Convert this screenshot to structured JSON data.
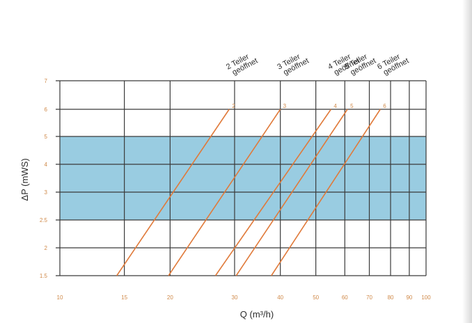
{
  "chart_data": {
    "type": "line",
    "xscale": "log",
    "xlim": [
      10,
      100
    ],
    "ylim": [
      1.5,
      7
    ],
    "xlabel": "Q (m³/h)",
    "ylabel": "ΔP (mWS)",
    "xticks": [
      {
        "value": 10,
        "label": "10"
      },
      {
        "value": 15,
        "label": "15"
      },
      {
        "value": 20,
        "label": "20"
      },
      {
        "value": 30,
        "label": "30"
      },
      {
        "value": 40,
        "label": "40"
      },
      {
        "value": 50,
        "label": "50"
      },
      {
        "value": 60,
        "label": "60"
      },
      {
        "value": 70,
        "label": "70"
      },
      {
        "value": 80,
        "label": "80"
      },
      {
        "value": 90,
        "label": "90"
      },
      {
        "value": 100,
        "label": "100"
      }
    ],
    "yticks": [
      {
        "value": 1.5,
        "label": "1.5"
      },
      {
        "value": 2,
        "label": "2"
      },
      {
        "value": 2.5,
        "label": "2.5"
      },
      {
        "value": 3,
        "label": "3"
      },
      {
        "value": 4,
        "label": "4"
      },
      {
        "value": 5,
        "label": "5"
      },
      {
        "value": 6,
        "label": "6"
      },
      {
        "value": 7,
        "label": "7"
      }
    ],
    "band": {
      "y_from": 2.5,
      "y_to": 5,
      "color": "#87c3dc"
    },
    "grid": true,
    "series": [
      {
        "name": "2 Teiler geöffnet",
        "top_label": "2",
        "points": [
          [
            14.3,
            1.5
          ],
          [
            29,
            6
          ]
        ]
      },
      {
        "name": "3 Teiler geöffnet",
        "top_label": "3",
        "points": [
          [
            19.8,
            1.5
          ],
          [
            40,
            6
          ]
        ]
      },
      {
        "name": "4 Teiler geöffnet",
        "top_label": "4",
        "points": [
          [
            26.6,
            1.5
          ],
          [
            55,
            6
          ]
        ]
      },
      {
        "name": "5 Teiler geöffnet",
        "top_label": "5",
        "points": [
          [
            30.3,
            1.5
          ],
          [
            61,
            6
          ]
        ]
      },
      {
        "name": "6 Teiler geöffnet",
        "top_label": "6",
        "points": [
          [
            37.8,
            1.5
          ],
          [
            75,
            6
          ]
        ]
      }
    ],
    "colors": {
      "series": "#e07a3a",
      "grid": "#3a3a3a",
      "ticks": "#d08a4a",
      "band": "#87c3dc"
    }
  }
}
